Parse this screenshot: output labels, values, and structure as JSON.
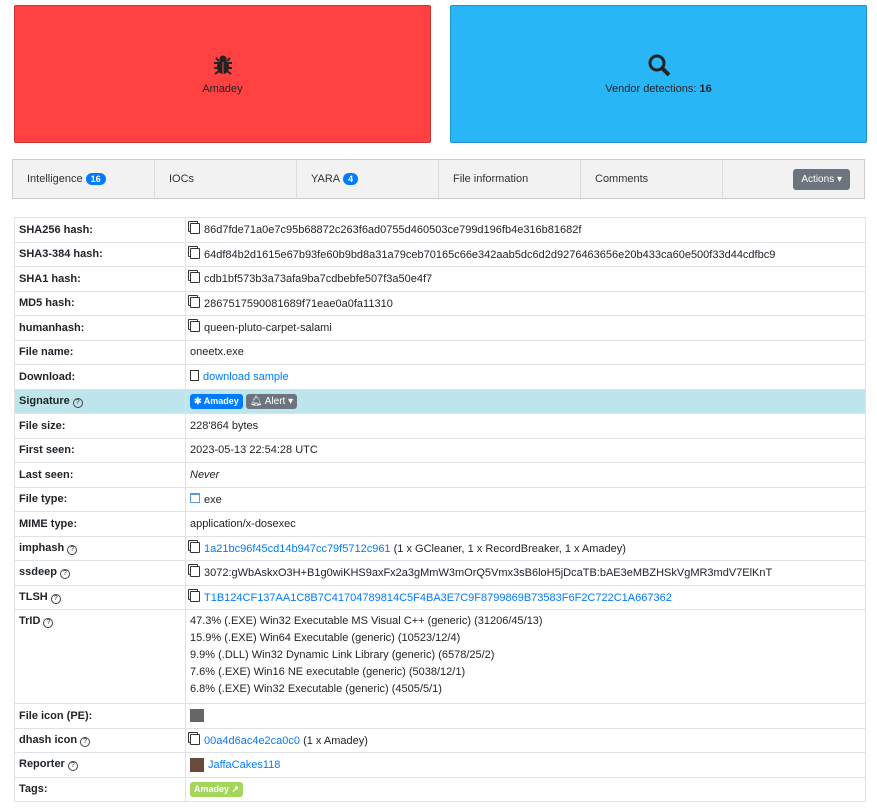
{
  "cards": {
    "family": "Amadey",
    "vendor_label": "Vendor detections:",
    "vendor_count": "16"
  },
  "tabs": [
    {
      "label": "Intelligence",
      "badge": "16"
    },
    {
      "label": "IOCs"
    },
    {
      "label": "YARA",
      "badge": "4"
    },
    {
      "label": "File information"
    },
    {
      "label": "Comments"
    }
  ],
  "actions_label": "Actions",
  "rows": {
    "sha256": {
      "label": "SHA256 hash:",
      "value": "86d7fde71a0e7c95b68872c263f6ad0755d460503ce799d196fb4e316b81682f"
    },
    "sha3": {
      "label": "SHA3-384 hash:",
      "value": "64df84b2d1615e67b93fe60b9bd8a31a79ceb70165c66e342aab5dc6d2d9276463656e20b433ca60e500f33d44cdfbc9"
    },
    "sha1": {
      "label": "SHA1 hash:",
      "value": "cdb1bf573b3a73afa9ba7cdbebfe507f3a50e4f7"
    },
    "md5": {
      "label": "MD5 hash:",
      "value": "2867517590081689f71eae0a0fa11310"
    },
    "humanhash": {
      "label": "humanhash:",
      "value": "queen-pluto-carpet-salami"
    },
    "filename": {
      "label": "File name:",
      "value": "oneetx.exe"
    },
    "download": {
      "label": "Download:",
      "value": "download sample"
    },
    "signature": {
      "label": "Signature",
      "badge": "Amadey",
      "alert": "Alert"
    },
    "filesize": {
      "label": "File size:",
      "value": "228'864 bytes"
    },
    "firstseen": {
      "label": "First seen:",
      "value": "2023-05-13 22:54:28 UTC"
    },
    "lastseen": {
      "label": "Last seen:",
      "value": "Never"
    },
    "filetype": {
      "label": "File type:",
      "value": "exe"
    },
    "mime": {
      "label": "MIME type:",
      "value": "application/x-dosexec"
    },
    "imphash": {
      "label": "imphash",
      "value": "1a21bc96f45cd14b947cc79f5712c961",
      "extra": "(1 x GCleaner, 1 x RecordBreaker, 1 x Amadey)"
    },
    "ssdeep": {
      "label": "ssdeep",
      "value": "3072:gWbAskxO3H+B1g0wiKHS9axFx2a3gMmW3mOrQ5Vmx3sB6loH5jDcaTB:bAE3eMBZHSkVgMR3mdV7ElKnT"
    },
    "tlsh": {
      "label": "TLSH",
      "value": "T1B124CF137AA1C8B7C41704789814C5F4BA3E7C9F8799869B73583F6F2C722C1A667362"
    },
    "trid": {
      "label": "TrID",
      "values": [
        "47.3% (.EXE) Win32 Executable MS Visual C++ (generic) (31206/45/13)",
        "15.9% (.EXE) Win64 Executable (generic) (10523/12/4)",
        "9.9% (.DLL) Win32 Dynamic Link Library (generic) (6578/25/2)",
        "7.6% (.EXE) Win16 NE executable (generic) (5038/12/1)",
        "6.8% (.EXE) Win32 Executable (generic) (4505/5/1)"
      ]
    },
    "fileicon": {
      "label": "File icon (PE):"
    },
    "dhash": {
      "label": "dhash icon",
      "value": "00a4d6ac4e2ca0c0",
      "extra": "(1 x Amadey)"
    },
    "reporter": {
      "label": "Reporter",
      "value": "JaffaCakes118"
    },
    "tags": {
      "label": "Tags:",
      "value": "Amadey"
    }
  },
  "colors": {
    "malware": "#ff4141",
    "vendor": "#29b6f6",
    "link": "#007bff",
    "signature_row": "#bee5eb",
    "tag": "#a4d65e"
  }
}
